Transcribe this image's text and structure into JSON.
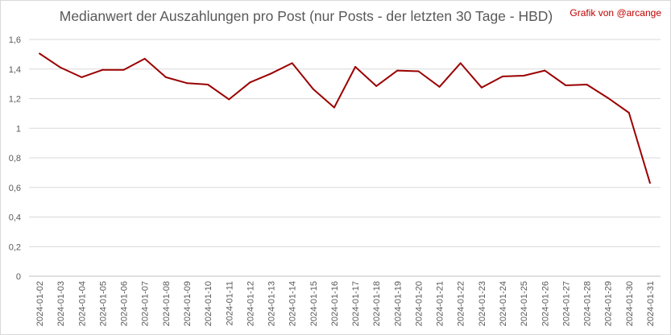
{
  "chart_data": {
    "type": "line",
    "title": "Medianwert der Auszahlungen pro Post (nur Posts - der letzten 30 Tage - HBD)",
    "credit": "Grafik von @arcange",
    "xlabel": "",
    "ylabel": "",
    "ylim": [
      0,
      1.6
    ],
    "yticks": [
      "0",
      "0,2",
      "0,4",
      "0,6",
      "0,8",
      "1",
      "1,2",
      "1,4",
      "1,6"
    ],
    "grid": true,
    "legend": "none",
    "categories": [
      "2024-01-02",
      "2024-01-03",
      "2024-01-04",
      "2024-01-05",
      "2024-01-06",
      "2024-01-07",
      "2024-01-08",
      "2024-01-09",
      "2024-01-10",
      "2024-01-11",
      "2024-01-12",
      "2024-01-13",
      "2024-01-14",
      "2024-01-15",
      "2024-01-16",
      "2024-01-17",
      "2024-01-18",
      "2024-01-19",
      "2024-01-20",
      "2024-01-21",
      "2024-01-22",
      "2024-01-23",
      "2024-01-24",
      "2024-01-25",
      "2024-01-26",
      "2024-01-27",
      "2024-01-28",
      "2024-01-29",
      "2024-01-30",
      "2024-01-31"
    ],
    "series": [
      {
        "color": "#9b0000",
        "values": [
          1.505,
          1.41,
          1.345,
          1.395,
          1.395,
          1.47,
          1.345,
          1.305,
          1.295,
          1.195,
          1.31,
          1.37,
          1.44,
          1.265,
          1.14,
          1.415,
          1.285,
          1.39,
          1.385,
          1.28,
          1.44,
          1.275,
          1.35,
          1.355,
          1.39,
          1.29,
          1.295,
          1.205,
          1.105,
          0.63
        ]
      }
    ]
  }
}
